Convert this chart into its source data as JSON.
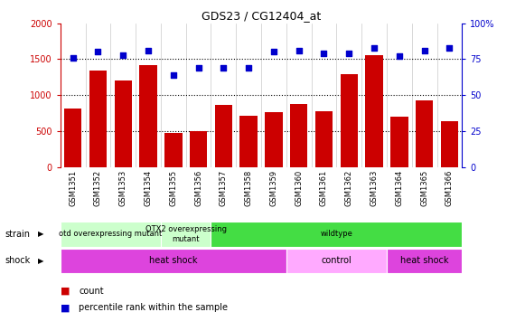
{
  "title": "GDS23 / CG12404_at",
  "samples": [
    "GSM1351",
    "GSM1352",
    "GSM1353",
    "GSM1354",
    "GSM1355",
    "GSM1356",
    "GSM1357",
    "GSM1358",
    "GSM1359",
    "GSM1360",
    "GSM1361",
    "GSM1362",
    "GSM1363",
    "GSM1364",
    "GSM1365",
    "GSM1366"
  ],
  "counts": [
    820,
    1340,
    1200,
    1420,
    470,
    500,
    870,
    720,
    760,
    880,
    775,
    1290,
    1560,
    700,
    930,
    635
  ],
  "percentiles": [
    76,
    80,
    78,
    81,
    64,
    69,
    69,
    69,
    80,
    81,
    79,
    79,
    83,
    77,
    81,
    83
  ],
  "ylim_left": [
    0,
    2000
  ],
  "ylim_right": [
    0,
    100
  ],
  "yticks_left": [
    0,
    500,
    1000,
    1500,
    2000
  ],
  "yticks_right": [
    0,
    25,
    50,
    75,
    100
  ],
  "yticklabels_right": [
    "0",
    "25",
    "50",
    "75",
    "100%"
  ],
  "bar_color": "#cc0000",
  "dot_color": "#0000cc",
  "strain_labels": [
    {
      "label": "otd overexpressing mutant",
      "start": 0,
      "end": 4,
      "color": "#ccffcc"
    },
    {
      "label": "OTX2 overexpressing\nmutant",
      "start": 4,
      "end": 6,
      "color": "#ccffcc"
    },
    {
      "label": "wildtype",
      "start": 6,
      "end": 16,
      "color": "#44dd44"
    }
  ],
  "shock_labels": [
    {
      "label": "heat shock",
      "start": 0,
      "end": 9,
      "color": "#dd44dd"
    },
    {
      "label": "control",
      "start": 9,
      "end": 13,
      "color": "#ffaaff"
    },
    {
      "label": "heat shock",
      "start": 13,
      "end": 16,
      "color": "#dd44dd"
    }
  ],
  "background_color": "#ffffff"
}
